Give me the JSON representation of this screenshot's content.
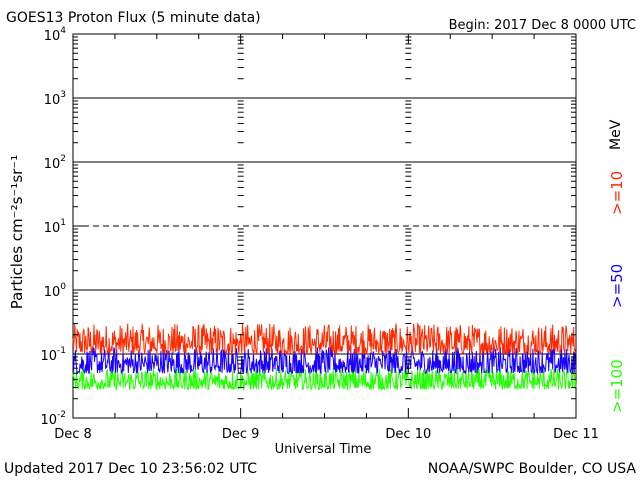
{
  "header": {
    "title": "GOES13 Proton Flux (5 minute data)",
    "begin": "Begin: 2017 Dec 8 0000 UTC"
  },
  "footer": {
    "updated": "Updated 2017 Dec 10 23:56:02 UTC",
    "source": "NOAA/SWPC Boulder, CO USA"
  },
  "chart_data": {
    "type": "line",
    "title": "GOES13 Proton Flux (5 minute data)",
    "xlabel": "Universal Time",
    "ylabel": "Particles cm⁻²s⁻¹sr⁻¹",
    "yscale": "log",
    "ylim": [
      0.01,
      10000
    ],
    "y_ticks": [
      {
        "value": 0.01,
        "base": "10",
        "exp": "-2"
      },
      {
        "value": 0.1,
        "base": "10",
        "exp": "-1"
      },
      {
        "value": 1,
        "base": "10",
        "exp": "0"
      },
      {
        "value": 10,
        "base": "10",
        "exp": "1"
      },
      {
        "value": 100,
        "base": "10",
        "exp": "2"
      },
      {
        "value": 1000,
        "base": "10",
        "exp": "3"
      },
      {
        "value": 10000,
        "base": "10",
        "exp": "4"
      }
    ],
    "x_tick_labels": [
      "Dec 8",
      "Dec 9",
      "Dec 10",
      "Dec 11"
    ],
    "grid": true,
    "series": [
      {
        "name": ">=10 MeV",
        "color": "#ff2a00",
        "range": [
          0.1,
          0.3
        ]
      },
      {
        "name": ">=50 MeV",
        "color": "#1a00ff",
        "range": [
          0.05,
          0.13
        ]
      },
      {
        "name": ">=100 MeV",
        "color": "#22ff00",
        "range": [
          0.028,
          0.06
        ]
      }
    ],
    "legend": {
      "unit": "MeV",
      "labels": [
        ">=10",
        ">=50",
        ">=100"
      ],
      "placement": "right"
    }
  }
}
